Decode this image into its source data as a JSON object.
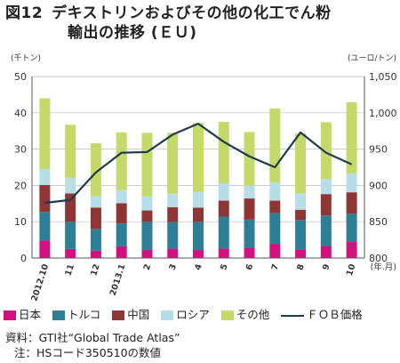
{
  "title": {
    "number": "図12",
    "line1": "デキストリンおよびその他の化工でん粉",
    "line2": "輸出の推移 (ＥＵ)"
  },
  "notes": {
    "source": "資料：GTI社“Global Trade Atlas”",
    "note": "注：HSコード350510の数値"
  },
  "chart_data": {
    "type": "bar",
    "stacked": true,
    "categories": [
      "2012.10",
      "11",
      "12",
      "2013.1",
      "2",
      "3",
      "4",
      "5",
      "6",
      "7",
      "8",
      "9",
      "10"
    ],
    "xlabel_unit": "(年.月)",
    "yleft": {
      "unit": "(千トン)",
      "ylim": [
        0,
        50
      ],
      "ticks": [
        "0",
        "10",
        "20",
        "30",
        "40",
        "50"
      ]
    },
    "yright": {
      "unit": "(ユーロ/トン)",
      "ylim": [
        800,
        1050
      ],
      "ticks": [
        "800",
        "850",
        "900",
        "950",
        "1,000",
        "1,050"
      ]
    },
    "grid": true,
    "legend_position": "bottom",
    "series": [
      {
        "name": "日本",
        "color": "#d1127e",
        "values": [
          4.8,
          2.5,
          2.0,
          3.2,
          2.2,
          2.6,
          2.2,
          2.6,
          2.8,
          3.9,
          2.4,
          3.3,
          4.4
        ]
      },
      {
        "name": "トルコ",
        "color": "#2e7e96",
        "values": [
          7.9,
          7.5,
          6.0,
          6.3,
          7.8,
          7.3,
          7.8,
          8.8,
          7.8,
          8.5,
          8.1,
          8.4,
          7.8
        ]
      },
      {
        "name": "中国",
        "color": "#8e3535",
        "values": [
          7.4,
          7.8,
          5.9,
          5.6,
          3.1,
          4.1,
          3.9,
          4.4,
          5.8,
          3.4,
          2.8,
          5.9,
          5.9
        ]
      },
      {
        "name": "ロシア",
        "color": "#b7dde8",
        "values": [
          4.4,
          4.3,
          3.1,
          3.6,
          3.9,
          3.7,
          4.3,
          4.8,
          3.6,
          5.0,
          4.5,
          4.2,
          5.2
        ]
      },
      {
        "name": "その他",
        "color": "#c3d96a",
        "values": [
          19.5,
          14.6,
          14.6,
          15.9,
          17.5,
          16.8,
          19.0,
          16.9,
          14.7,
          20.4,
          16.5,
          15.6,
          19.6
        ]
      }
    ],
    "line_series": {
      "name": "ＦＯＢ価格",
      "axis": "right",
      "color": "#1f3a4d",
      "values": [
        876,
        880,
        918,
        945,
        946,
        970,
        985,
        960,
        940,
        925,
        973,
        945,
        929
      ]
    }
  }
}
